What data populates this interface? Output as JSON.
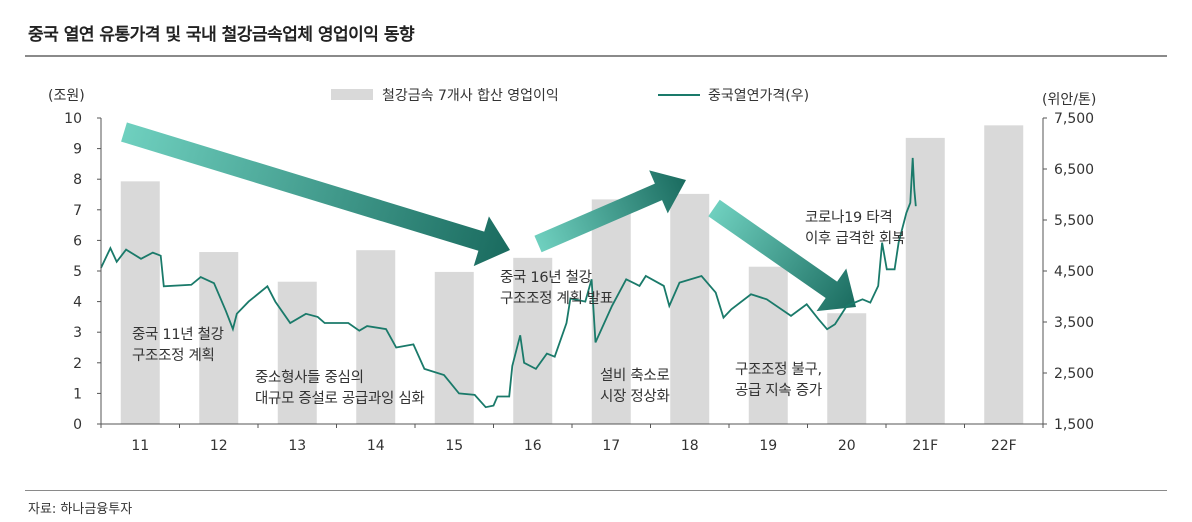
{
  "header": {
    "title": "중국 열연 유통가격 및 국내 철강금속업체 영업이익 동향"
  },
  "footer": {
    "source": "자료: 하나금융투자"
  },
  "colors": {
    "bar": "#d9d9d9",
    "line": "#1a7a6a",
    "arrow_light": "#6fd0bf",
    "arrow_dark": "#1a6b5f"
  },
  "chart_data": {
    "type": "bar+line",
    "title": "",
    "categories": [
      "11",
      "12",
      "13",
      "14",
      "15",
      "16",
      "17",
      "18",
      "19",
      "20",
      "21F",
      "22F"
    ],
    "left_axis": {
      "label": "(조원)",
      "range": [
        0,
        10
      ],
      "ticks": [
        "0",
        "1",
        "2",
        "3",
        "4",
        "5",
        "6",
        "7",
        "8",
        "9",
        "10"
      ]
    },
    "right_axis": {
      "label": "(위안/톤)",
      "range": [
        1500,
        7500
      ],
      "ticks": [
        "1,500",
        "2,500",
        "3,500",
        "4,500",
        "5,500",
        "6,500",
        "7,500"
      ]
    },
    "legend": {
      "placement": "top-center",
      "entries": [
        "철강금속 7개사 합산 영업이익",
        "중국열연가격(우)"
      ]
    },
    "grid": false,
    "series": [
      {
        "name": "철강금속 7개사 합산 영업이익",
        "type": "bar",
        "axis": "left",
        "values": [
          7.93,
          5.62,
          4.65,
          5.68,
          4.97,
          5.43,
          7.34,
          7.52,
          5.14,
          3.62,
          9.35,
          9.76
        ]
      },
      {
        "name": "중국열연가격(우)",
        "type": "line",
        "axis": "right",
        "x": [
          2011.0,
          2011.12,
          2011.2,
          2011.32,
          2011.51,
          2011.66,
          2011.76,
          2011.8,
          2012.15,
          2012.27,
          2012.44,
          2012.59,
          2012.68,
          2012.73,
          2012.88,
          2013.12,
          2013.22,
          2013.41,
          2013.61,
          2013.76,
          2013.85,
          2014.15,
          2014.29,
          2014.39,
          2014.63,
          2014.76,
          2014.98,
          2015.12,
          2015.37,
          2015.56,
          2015.76,
          2015.9,
          2016.0,
          2016.05,
          2016.2,
          2016.24,
          2016.34,
          2016.39,
          2016.54,
          2016.68,
          2016.78,
          2016.93,
          2016.98,
          2017.17,
          2017.25,
          2017.3,
          2017.51,
          2017.69,
          2017.86,
          2017.94,
          2018.17,
          2018.24,
          2018.37,
          2018.65,
          2018.83,
          2018.93,
          2019.03,
          2019.28,
          2019.48,
          2019.79,
          2019.99,
          2020.14,
          2020.25,
          2020.35,
          2020.5,
          2020.7,
          2020.8,
          2020.9,
          2020.95,
          2021.01,
          2021.11,
          2021.16,
          2021.26,
          2021.31,
          2021.34,
          2021.36,
          2021.38
        ],
        "y": [
          4560,
          4950,
          4680,
          4920,
          4740,
          4860,
          4800,
          4200,
          4230,
          4380,
          4260,
          3720,
          3360,
          3660,
          3900,
          4200,
          3900,
          3480,
          3660,
          3600,
          3480,
          3480,
          3330,
          3420,
          3360,
          3000,
          3060,
          2580,
          2460,
          2100,
          2070,
          1830,
          1860,
          2040,
          2040,
          2640,
          3240,
          2700,
          2580,
          2880,
          2820,
          3480,
          3960,
          3900,
          4337,
          3100,
          3815,
          4337,
          4207,
          4402,
          4207,
          3815,
          4272,
          4402,
          4076,
          3587,
          3750,
          4043,
          3946,
          3620,
          3848,
          3554,
          3359,
          3456,
          3815,
          3946,
          3880,
          4207,
          5054,
          4533,
          4533,
          5054,
          5641,
          5837,
          6717,
          6098,
          5770
        ]
      }
    ],
    "annotations": [
      [
        "중국 11년 철강",
        "구조조정 계획"
      ],
      [
        "중소형사들 중심의",
        "대규모 증설로 공급과잉 심화"
      ],
      [
        "중국 16년 철강",
        "구조조정 계획 발표"
      ],
      [
        "설비 축소로",
        "시장 정상화"
      ],
      [
        "구조조정 불구,",
        "공급 지속 증가"
      ],
      [
        "코로나19 타격",
        "이후 급격한 회복"
      ]
    ]
  }
}
